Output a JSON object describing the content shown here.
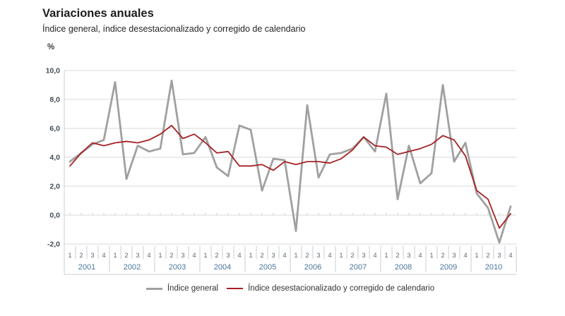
{
  "header": {
    "title": "Variaciones anuales",
    "subtitle": "Índice general, índice desestacionalizado y corregido de calendario",
    "unit_label": "%"
  },
  "legend": [
    {
      "label": "Índice general",
      "color": "#a0a0a0"
    },
    {
      "label": "Índice desestacionalizado y corregido de calendario",
      "color": "#a62123"
    }
  ],
  "chart_data": {
    "type": "line",
    "title": "Variaciones anuales",
    "subtitle": "Índice general, índice desestacionalizado y corregido de calendario",
    "ylabel": "%",
    "ylim": [
      -2,
      10
    ],
    "ytick_step": 2,
    "grid": true,
    "legend_position": "bottom",
    "x_years": [
      2001,
      2002,
      2003,
      2004,
      2005,
      2006,
      2007,
      2008,
      2009,
      2010
    ],
    "quarter_tick_labels": [
      "1",
      "2",
      "3",
      "4"
    ],
    "series": [
      {
        "name": "Índice general",
        "color": "#a0a0a0",
        "values": [
          3.7,
          4.3,
          4.9,
          5.2,
          9.2,
          2.5,
          4.8,
          4.4,
          4.6,
          9.3,
          4.2,
          4.3,
          5.4,
          3.3,
          2.7,
          6.2,
          5.9,
          1.7,
          3.9,
          3.8,
          -1.1,
          7.6,
          2.6,
          4.2,
          4.3,
          4.6,
          5.4,
          4.4,
          8.4,
          1.1,
          4.8,
          2.2,
          2.9,
          9.0,
          3.7,
          5.0,
          1.5,
          0.5,
          -1.9,
          0.6
        ]
      },
      {
        "name": "Índice desestacionalizado y corregido de calendario",
        "color": "#a62123",
        "values": [
          3.4,
          4.3,
          5.0,
          4.8,
          5.0,
          5.1,
          5.0,
          5.2,
          5.6,
          6.2,
          5.3,
          5.6,
          5.0,
          4.3,
          4.4,
          3.4,
          3.4,
          3.5,
          3.1,
          3.7,
          3.5,
          3.7,
          3.7,
          3.6,
          3.9,
          4.5,
          5.4,
          4.8,
          4.7,
          4.2,
          4.4,
          4.6,
          4.9,
          5.5,
          5.2,
          4.1,
          1.7,
          1.1,
          -0.9,
          0.1
        ]
      }
    ]
  }
}
